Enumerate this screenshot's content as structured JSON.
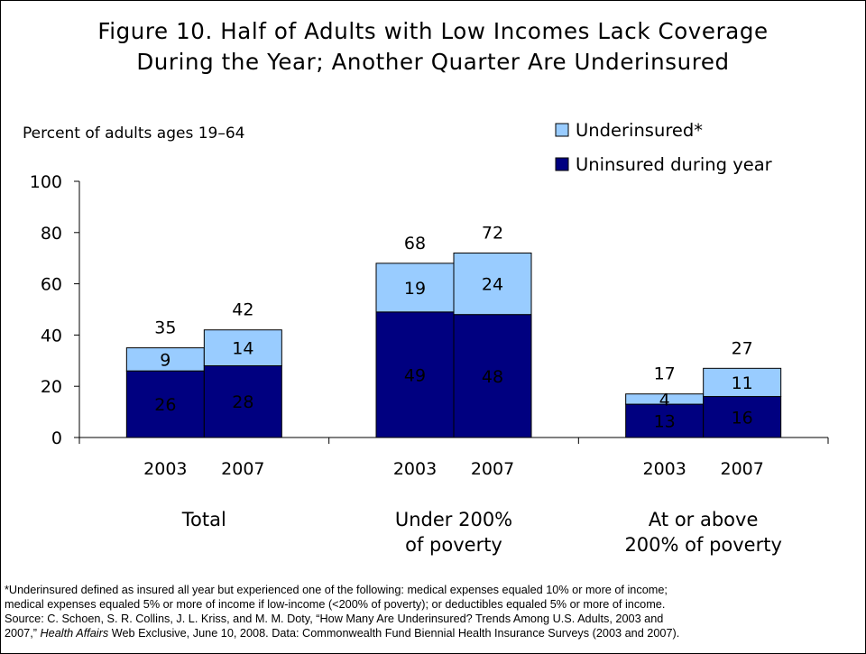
{
  "chart_data": {
    "type": "bar",
    "stacked": true,
    "title": [
      "Figure 10. Half of Adults with Low Incomes Lack Coverage",
      "During the Year; Another Quarter Are Underinsured"
    ],
    "ylabel": "Percent of adults ages 19–64",
    "ylim": [
      0,
      100
    ],
    "yticks": [
      "0",
      "20",
      "40",
      "60",
      "80",
      "100"
    ],
    "grid": false,
    "legend_position": "top-right",
    "groups": [
      {
        "label": [
          "Total"
        ],
        "years": [
          "2003",
          "2007"
        ]
      },
      {
        "label": [
          "Under 200%",
          "of poverty"
        ],
        "years": [
          "2003",
          "2007"
        ]
      },
      {
        "label": [
          "At or above",
          "200% of poverty"
        ],
        "years": [
          "2003",
          "2007"
        ]
      }
    ],
    "series": [
      {
        "name": "Uninsured during year",
        "color": "#000080",
        "label_color": "#ffffff",
        "values": [
          26,
          28,
          49,
          48,
          13,
          16
        ]
      },
      {
        "name": "Underinsured*",
        "color": "#99ccff",
        "label_color": "#000000",
        "values": [
          9,
          14,
          19,
          24,
          4,
          11
        ]
      }
    ],
    "totals": [
      35,
      42,
      68,
      72,
      17,
      27
    ],
    "legend_order": [
      1,
      0
    ]
  },
  "footnote": [
    "*Underinsured defined as insured all year but experienced one of the following: medical expenses equaled 10% or more of income;",
    "medical expenses equaled 5% or more of income if low-income (<200% of poverty); or deductibles equaled 5% or more of income.",
    "Source: C. Schoen, S. R. Collins, J. L. Kriss, and M. M. Doty, “How Many Are Underinsured? Trends Among U.S. Adults, 2003 and"
  ],
  "footnote_last": {
    "before": "2007,” ",
    "italic": "Health Affairs",
    "after": " Web Exclusive, June 10, 2008. Data: Commonwealth Fund Biennial Health Insurance Surveys (2003 and 2007)."
  }
}
